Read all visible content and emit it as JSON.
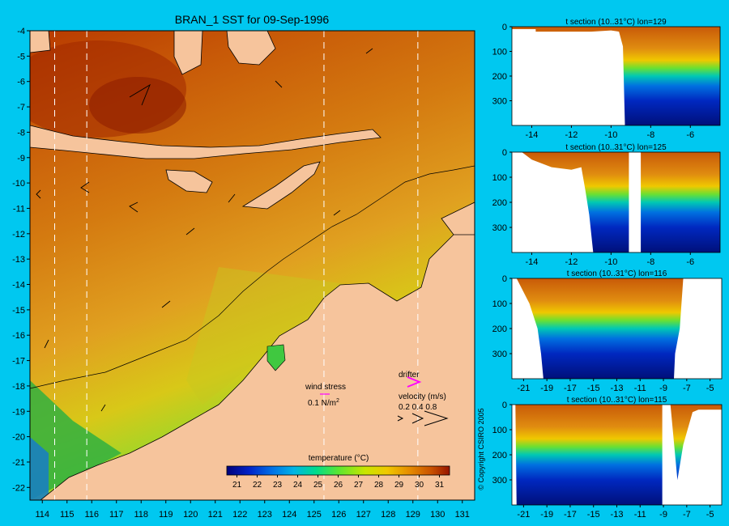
{
  "colors": {
    "background": "#00c8f0",
    "land": "#f6c49c",
    "arrow_drifter": "#ff00ff",
    "guide_lines": "#ffffff",
    "colormap": [
      "#00007a",
      "#0022c8",
      "#006ee6",
      "#00b4e6",
      "#00dc8c",
      "#5ae632",
      "#c8e600",
      "#f0c800",
      "#e68c00",
      "#c85000",
      "#961400"
    ]
  },
  "chart_data": [
    {
      "type": "heatmap",
      "title": "BRAN_1 SST for 09-Sep-1996",
      "xlim": [
        113.5,
        131.5
      ],
      "ylim": [
        -22.5,
        -4
      ],
      "x_ticks": [
        "114",
        "115",
        "116",
        "117",
        "118",
        "119",
        "120",
        "121",
        "122",
        "123",
        "124",
        "125",
        "126",
        "127",
        "128",
        "129",
        "130",
        "131"
      ],
      "y_ticks": [
        "-4",
        "-5",
        "-6",
        "-7",
        "-8",
        "-9",
        "-10",
        "-11",
        "-12",
        "-13",
        "-14",
        "-15",
        "-16",
        "-17",
        "-18",
        "-19",
        "-20",
        "-21",
        "-22"
      ],
      "section_longitudes": [
        114.5,
        115.8,
        125.4,
        129.2
      ],
      "colorbar": {
        "label": "temperature (°C)",
        "ticks": [
          "21",
          "22",
          "23",
          "24",
          "25",
          "26",
          "27",
          "28",
          "29",
          "30",
          "31"
        ],
        "range": [
          20.5,
          31.5
        ]
      },
      "annotations": {
        "wind_stress_label": "wind stress",
        "wind_stress_scale": "0.1 N/m",
        "wind_stress_exp": "2",
        "drifter_label": "drifter",
        "velocity_label": "velocity (m/s)",
        "velocity_scale": "0.2 0.4 0.8"
      }
    },
    {
      "type": "heatmap",
      "title": "t section (10..31°C) lon=129",
      "xlim": [
        -15,
        -4.5
      ],
      "ylim": [
        400,
        0
      ],
      "x_ticks": [
        "-14",
        "-12",
        "-10",
        "-8",
        "-6"
      ],
      "y_ticks": [
        "0",
        "100",
        "200",
        "300"
      ]
    },
    {
      "type": "heatmap",
      "title": "t section (10..31°C) lon=125",
      "xlim": [
        -15,
        -4.5
      ],
      "ylim": [
        400,
        0
      ],
      "x_ticks": [
        "-14",
        "-12",
        "-10",
        "-8",
        "-6"
      ],
      "y_ticks": [
        "0",
        "100",
        "200",
        "300"
      ]
    },
    {
      "type": "heatmap",
      "title": "t section (10..31°C) lon=116",
      "xlim": [
        -22,
        -4
      ],
      "ylim": [
        400,
        0
      ],
      "x_ticks": [
        "-21",
        "-19",
        "-17",
        "-15",
        "-13",
        "-11",
        "-9",
        "-7",
        "-5"
      ],
      "y_ticks": [
        "0",
        "100",
        "200",
        "300"
      ]
    },
    {
      "type": "heatmap",
      "title": "t section (10..31°C) lon=115",
      "xlim": [
        -22,
        -4
      ],
      "ylim": [
        400,
        0
      ],
      "x_ticks": [
        "-21",
        "-19",
        "-17",
        "-15",
        "-13",
        "-11",
        "-9",
        "-7",
        "-5"
      ],
      "y_ticks": [
        "0",
        "100",
        "200",
        "300"
      ]
    }
  ],
  "copyright": "© Copyright CSIRO 2005"
}
